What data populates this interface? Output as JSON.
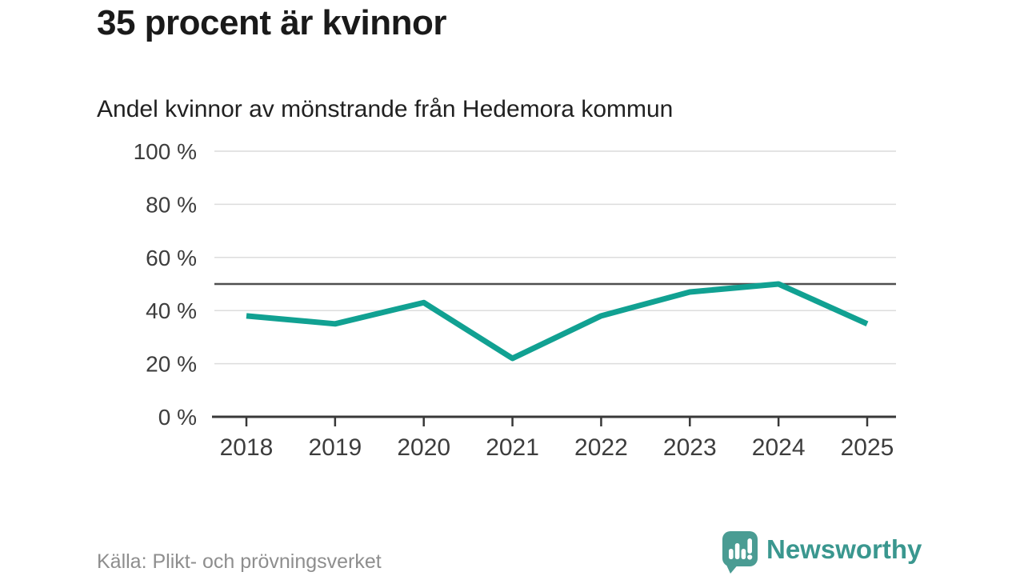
{
  "header": {
    "title": "35 procent är kvinnor",
    "subtitle": "Andel kvinnor av mönstrande från Hedemora kommun"
  },
  "chart_data": {
    "type": "line",
    "title": "35 procent är kvinnor",
    "subtitle": "Andel kvinnor av mönstrande från Hedemora kommun",
    "x": [
      "2018",
      "2019",
      "2020",
      "2021",
      "2022",
      "2023",
      "2024",
      "2025"
    ],
    "series": [
      {
        "name": "Andel kvinnor av mönstrande",
        "values": [
          38,
          35,
          43,
          22,
          38,
          47,
          50,
          35
        ],
        "color": "#11a192"
      }
    ],
    "unit": "%",
    "ylim": [
      0,
      100
    ],
    "y_ticks": [
      0,
      20,
      40,
      60,
      80,
      100
    ],
    "y_tick_labels": [
      "0 %",
      "20 %",
      "40 %",
      "60 %",
      "80 %",
      "100 %"
    ],
    "reference_line": {
      "value": 50,
      "color": "#4f4f4f"
    },
    "grid": "horizontal",
    "legend": "none"
  },
  "footer": {
    "source": "Källa: Plikt- och prövningsverket",
    "brand_name": "Newsworthy"
  },
  "colors": {
    "accent_teal": "#11a192",
    "logo_teal": "#4a9c93",
    "logo_text_teal": "#3a978f",
    "title_text": "#1a1a1a",
    "axis_text": "#3d3d3d",
    "muted_text": "#8e8e8e",
    "gridline": "#dcdcdc",
    "axis_line": "#383838"
  }
}
